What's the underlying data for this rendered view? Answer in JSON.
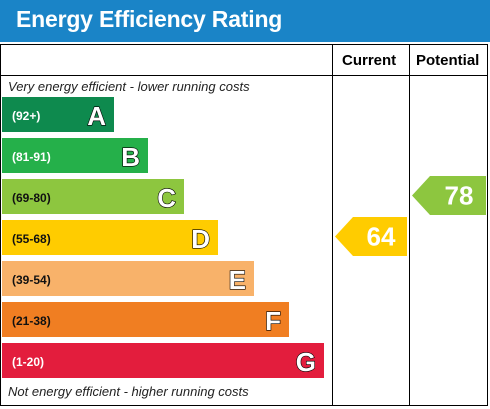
{
  "chart_data": {
    "type": "bar",
    "title": "Energy Efficiency Rating",
    "column_headers": [
      "Current",
      "Potential"
    ],
    "top_note": "Very energy efficient - lower running costs",
    "bottom_note": "Not energy efficient - higher running costs",
    "categories": [
      "A",
      "B",
      "C",
      "D",
      "E",
      "F",
      "G"
    ],
    "ranges": [
      "(92+)",
      "(81-91)",
      "(69-80)",
      "(55-68)",
      "(39-54)",
      "(21-38)",
      "(1-20)"
    ],
    "colors": [
      "#0e8a4e",
      "#25b04a",
      "#8dc63f",
      "#ffcc00",
      "#f8b26a",
      "#f07e22",
      "#e31d3d"
    ],
    "current": {
      "value": 64,
      "band": "D",
      "color": "#ffcc00"
    },
    "potential": {
      "value": 78,
      "band": "C",
      "color": "#8dc63f"
    }
  }
}
